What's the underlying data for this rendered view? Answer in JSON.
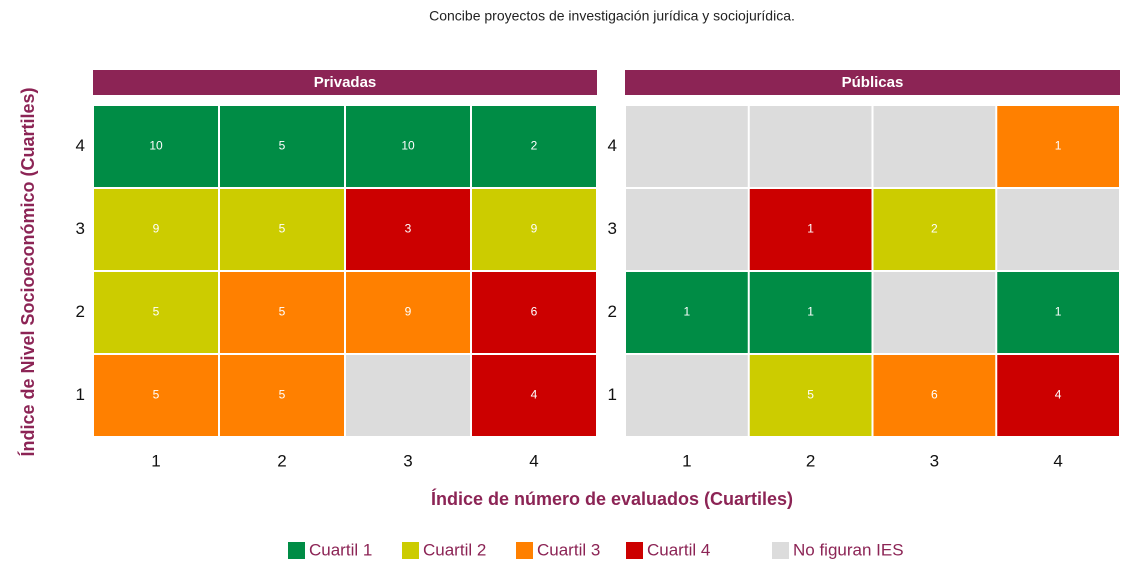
{
  "chart_data": {
    "type": "heatmap",
    "title": "Concibe proyectos de investigación jurídica y sociojurídica.",
    "xlabel": "Índice de número de evaluados (Cuartiles)",
    "ylabel": "Índice de Nivel Socioeconómico (Cuartiles)",
    "xticks": [
      1,
      2,
      3,
      4
    ],
    "yticks": [
      1,
      2,
      3,
      4
    ],
    "strip_color": "#8c2455",
    "legend": [
      {
        "name": "Cuartil 1",
        "color": "#008c45"
      },
      {
        "name": "Cuartil 2",
        "color": "#cccc00"
      },
      {
        "name": "Cuartil 3",
        "color": "#ff8000"
      },
      {
        "name": "Cuartil 4",
        "color": "#cc0000"
      },
      {
        "name": "No figuran IES",
        "color": "#dcdcdc"
      }
    ],
    "panels": [
      {
        "name": "Privadas",
        "values": [
          [
            5,
            5,
            null,
            4
          ],
          [
            5,
            5,
            9,
            6
          ],
          [
            9,
            5,
            3,
            9
          ],
          [
            10,
            5,
            10,
            2
          ]
        ],
        "classes": [
          [
            2,
            2,
            4,
            3
          ],
          [
            1,
            2,
            2,
            3
          ],
          [
            1,
            1,
            3,
            1
          ],
          [
            0,
            0,
            0,
            0
          ]
        ]
      },
      {
        "name": "Públicas",
        "values": [
          [
            null,
            5,
            6,
            4
          ],
          [
            1,
            1,
            null,
            1
          ],
          [
            null,
            1,
            2,
            null
          ],
          [
            null,
            null,
            null,
            1
          ]
        ],
        "classes": [
          [
            4,
            1,
            2,
            3
          ],
          [
            0,
            0,
            4,
            0
          ],
          [
            4,
            3,
            1,
            4
          ],
          [
            4,
            4,
            4,
            2
          ]
        ]
      }
    ]
  }
}
